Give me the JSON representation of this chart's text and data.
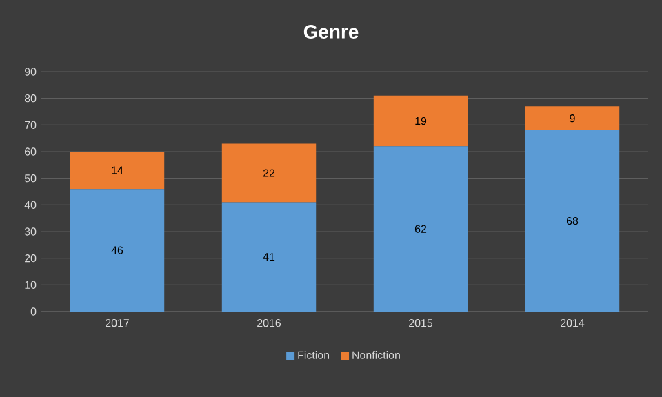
{
  "chart_data": {
    "type": "bar",
    "title": "Genre",
    "stacked": true,
    "categories": [
      "2017",
      "2016",
      "2015",
      "2014"
    ],
    "series": [
      {
        "name": "Fiction",
        "color": "#5b9bd5",
        "values": [
          46,
          41,
          62,
          68
        ]
      },
      {
        "name": "Nonfiction",
        "color": "#ed7d31",
        "values": [
          14,
          22,
          19,
          9
        ]
      }
    ],
    "ylim": [
      0,
      90
    ],
    "yticks": [
      0,
      10,
      20,
      30,
      40,
      50,
      60,
      70,
      80,
      90
    ],
    "grid": "y",
    "legend": "bottom",
    "data_labels": true
  }
}
